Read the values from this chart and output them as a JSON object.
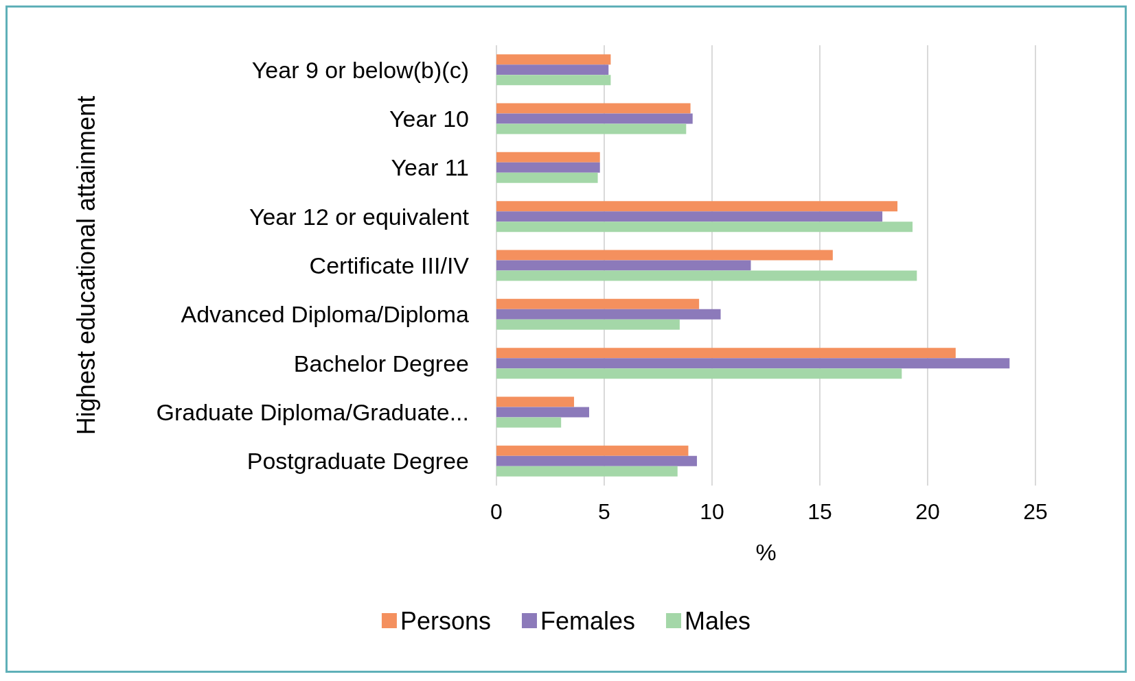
{
  "chart_data": {
    "type": "bar",
    "orientation": "horizontal",
    "xlabel": "%",
    "ylabel": "Highest educational attainment",
    "categories": [
      "Year 9 or below(b)(c)",
      "Year 10",
      "Year 11",
      "Year 12 or equivalent",
      "Certificate III/IV",
      "Advanced Diploma/Diploma",
      "Bachelor Degree",
      "Graduate Diploma/Graduate...",
      "Postgraduate Degree"
    ],
    "series": [
      {
        "name": "Persons",
        "color": "#f4905e",
        "values": [
          5.3,
          9.0,
          4.8,
          18.6,
          15.6,
          9.4,
          21.3,
          3.6,
          8.9
        ]
      },
      {
        "name": "Females",
        "color": "#8c7aba",
        "values": [
          5.2,
          9.1,
          4.8,
          17.9,
          11.8,
          10.4,
          23.8,
          4.3,
          9.3
        ]
      },
      {
        "name": "Males",
        "color": "#a4d7a8",
        "values": [
          5.3,
          8.8,
          4.7,
          19.3,
          19.5,
          8.5,
          18.8,
          3.0,
          8.4
        ]
      }
    ],
    "xlim": [
      0,
      25
    ],
    "xticks": [
      0,
      5,
      10,
      15,
      20,
      25
    ],
    "grid": "x",
    "legend": "bottom"
  }
}
